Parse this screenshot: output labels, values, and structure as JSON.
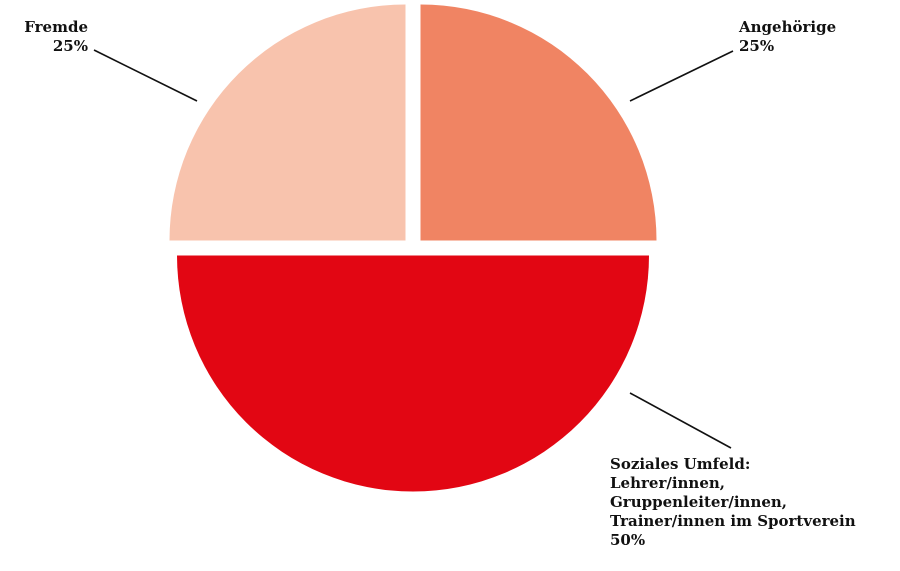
{
  "chart_data": {
    "type": "pie",
    "title": "",
    "slices": [
      {
        "key": "angehoerige",
        "label": "Angehörige",
        "value": 25,
        "value_text": "25%",
        "color": "#f08463"
      },
      {
        "key": "sozial",
        "label_lines": [
          "Soziales Umfeld:",
          "Lehrer/innen,",
          "Gruppenleiter/innen,",
          "Trainer/innen im Sportverein"
        ],
        "value": 50,
        "value_text": "50%",
        "color": "#e20613"
      },
      {
        "key": "fremde",
        "label": "Fremde",
        "value": 25,
        "value_text": "25%",
        "color": "#f8c3ad"
      }
    ],
    "start_angle_deg": 0,
    "exploded": true,
    "leader_lines": true
  }
}
